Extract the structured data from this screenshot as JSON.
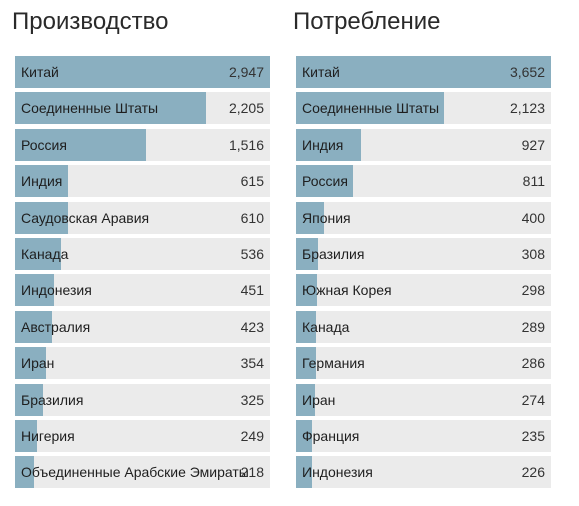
{
  "chart_data": [
    {
      "type": "bar",
      "orientation": "horizontal",
      "title": "Производство",
      "max_value": 2947,
      "categories": [
        "Китай",
        "Соединенные Штаты",
        "Россия",
        "Индия",
        "Саудовская Аравия",
        "Канада",
        "Индонезия",
        "Австралия",
        "Иран",
        "Бразилия",
        "Нигерия",
        "Объединенные Арабские Эмираты"
      ],
      "value_labels": [
        "2,947",
        "2,205",
        "1,516",
        "615",
        "610",
        "536",
        "451",
        "423",
        "354",
        "325",
        "249",
        "218"
      ],
      "values": [
        2947,
        2205,
        1516,
        615,
        610,
        536,
        451,
        423,
        354,
        325,
        249,
        218
      ]
    },
    {
      "type": "bar",
      "orientation": "horizontal",
      "title": "Потребление",
      "max_value": 3652,
      "categories": [
        "Китай",
        "Соединенные Штаты",
        "Индия",
        "Россия",
        "Япония",
        "Бразилия",
        "Южная Корея",
        "Канада",
        "Германия",
        "Иран",
        "Франция",
        "Индонезия"
      ],
      "value_labels": [
        "3,652",
        "2,123",
        "927",
        "811",
        "400",
        "308",
        "298",
        "289",
        "286",
        "274",
        "235",
        "226"
      ],
      "values": [
        3652,
        2123,
        927,
        811,
        400,
        308,
        298,
        289,
        286,
        274,
        235,
        226
      ]
    }
  ],
  "colors": {
    "bar": "#8aafc0",
    "track": "#ebebeb"
  }
}
